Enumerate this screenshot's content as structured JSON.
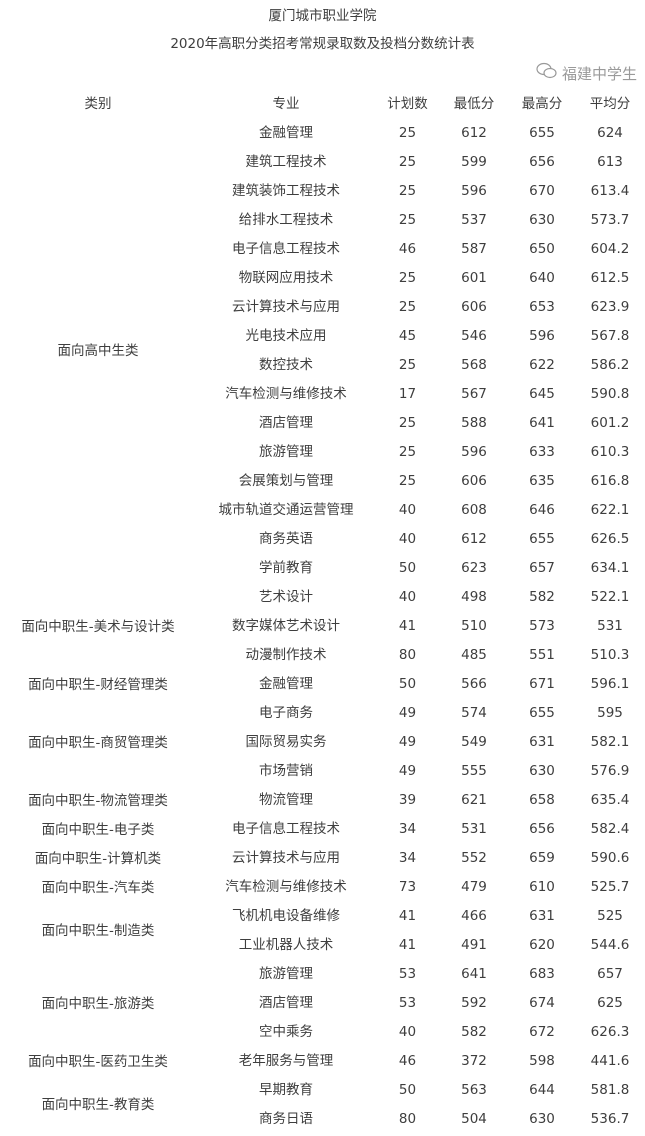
{
  "title": "厦门城市职业学院",
  "subtitle": "2020年高职分类招考常规录取数及投档分数统计表",
  "headers": [
    "类别",
    "专业",
    "计划数",
    "最低分",
    "最高分",
    "平均分"
  ],
  "groups": [
    {
      "category": "面向高中生类",
      "rows": [
        [
          "金融管理",
          "25",
          "612",
          "655",
          "624"
        ],
        [
          "建筑工程技术",
          "25",
          "599",
          "656",
          "613"
        ],
        [
          "建筑装饰工程技术",
          "25",
          "596",
          "670",
          "613.4"
        ],
        [
          "给排水工程技术",
          "25",
          "537",
          "630",
          "573.7"
        ],
        [
          "电子信息工程技术",
          "46",
          "587",
          "650",
          "604.2"
        ],
        [
          "物联网应用技术",
          "25",
          "601",
          "640",
          "612.5"
        ],
        [
          "云计算技术与应用",
          "25",
          "606",
          "653",
          "623.9"
        ],
        [
          "光电技术应用",
          "45",
          "546",
          "596",
          "567.8"
        ],
        [
          "数控技术",
          "25",
          "568",
          "622",
          "586.2"
        ],
        [
          "汽车检测与维修技术",
          "17",
          "567",
          "645",
          "590.8"
        ],
        [
          "酒店管理",
          "25",
          "588",
          "641",
          "601.2"
        ],
        [
          "旅游管理",
          "25",
          "596",
          "633",
          "610.3"
        ],
        [
          "会展策划与管理",
          "25",
          "606",
          "635",
          "616.8"
        ],
        [
          "城市轨道交通运营管理",
          "40",
          "608",
          "646",
          "622.1"
        ],
        [
          "商务英语",
          "40",
          "612",
          "655",
          "626.5"
        ],
        [
          "学前教育",
          "50",
          "623",
          "657",
          "634.1"
        ]
      ]
    },
    {
      "category": "面向中职生-美术与设计类",
      "rows": [
        [
          "艺术设计",
          "40",
          "498",
          "582",
          "522.1"
        ],
        [
          "数字媒体艺术设计",
          "41",
          "510",
          "573",
          "531"
        ],
        [
          "动漫制作技术",
          "80",
          "485",
          "551",
          "510.3"
        ]
      ]
    },
    {
      "category": "面向中职生-财经管理类",
      "rows": [
        [
          "金融管理",
          "50",
          "566",
          "671",
          "596.1"
        ]
      ]
    },
    {
      "category": "面向中职生-商贸管理类",
      "rows": [
        [
          "电子商务",
          "49",
          "574",
          "655",
          "595"
        ],
        [
          "国际贸易实务",
          "49",
          "549",
          "631",
          "582.1"
        ],
        [
          "市场营销",
          "49",
          "555",
          "630",
          "576.9"
        ]
      ]
    },
    {
      "category": "面向中职生-物流管理类",
      "rows": [
        [
          "物流管理",
          "39",
          "621",
          "658",
          "635.4"
        ]
      ]
    },
    {
      "category": "面向中职生-电子类",
      "rows": [
        [
          "电子信息工程技术",
          "34",
          "531",
          "656",
          "582.4"
        ]
      ]
    },
    {
      "category": "面向中职生-计算机类",
      "rows": [
        [
          "云计算技术与应用",
          "34",
          "552",
          "659",
          "590.6"
        ]
      ]
    },
    {
      "category": "面向中职生-汽车类",
      "rows": [
        [
          "汽车检测与维修技术",
          "73",
          "479",
          "610",
          "525.7"
        ]
      ]
    },
    {
      "category": "面向中职生-制造类",
      "rows": [
        [
          "飞机机电设备维修",
          "41",
          "466",
          "631",
          "525"
        ],
        [
          "工业机器人技术",
          "41",
          "491",
          "620",
          "544.6"
        ]
      ]
    },
    {
      "category": "面向中职生-旅游类",
      "rows": [
        [
          "旅游管理",
          "53",
          "641",
          "683",
          "657"
        ],
        [
          "酒店管理",
          "53",
          "592",
          "674",
          "625"
        ],
        [
          "空中乘务",
          "40",
          "582",
          "672",
          "626.3"
        ]
      ]
    },
    {
      "category": "面向中职生-医药卫生类",
      "rows": [
        [
          "老年服务与管理",
          "46",
          "372",
          "598",
          "441.6"
        ]
      ]
    },
    {
      "category": "面向中职生-教育类",
      "rows": [
        [
          "早期教育",
          "50",
          "563",
          "644",
          "581.8"
        ],
        [
          "商务日语",
          "80",
          "504",
          "630",
          "536.7"
        ]
      ]
    }
  ],
  "watermark": {
    "text": "福建中学生",
    "icon": "wechat-icon"
  }
}
